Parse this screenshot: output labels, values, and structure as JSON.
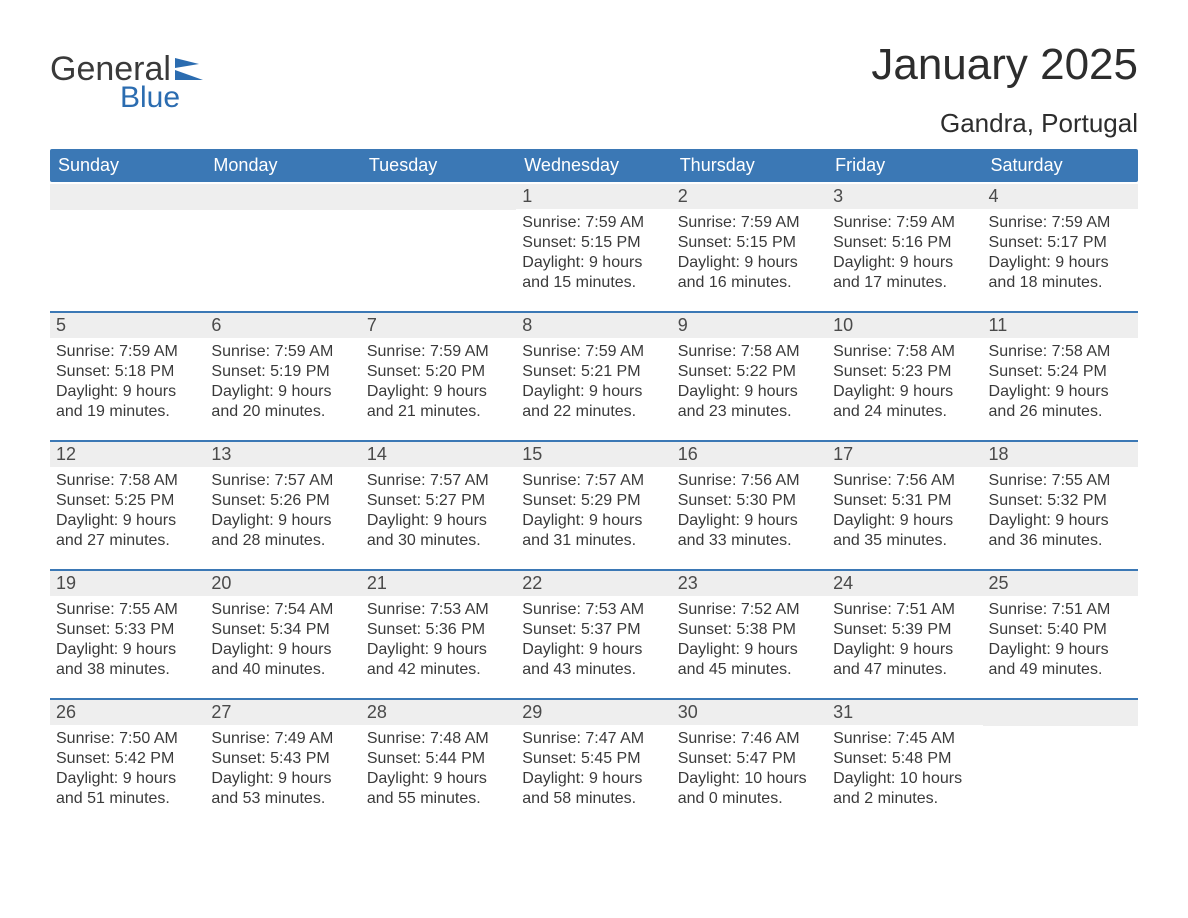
{
  "logo": {
    "word1": "General",
    "word2": "Blue",
    "word1_color": "#3a3a3a",
    "word2_color": "#2b6cb0",
    "flag_color": "#2b6cb0"
  },
  "title": {
    "month_year": "January 2025",
    "location": "Gandra, Portugal",
    "title_fontsize": 44,
    "location_fontsize": 26,
    "text_color": "#2d2d2d"
  },
  "style": {
    "header_bg": "#3b78b5",
    "header_text_color": "#ffffff",
    "week_border_color": "#3b78b5",
    "daynum_bg": "#eeeeee",
    "daynum_color": "#4a4a4a",
    "body_text_color": "#3a3a3a",
    "page_bg": "#ffffff",
    "weekday_fontsize": 18,
    "daynum_fontsize": 18,
    "content_fontsize": 16
  },
  "weekdays": [
    "Sunday",
    "Monday",
    "Tuesday",
    "Wednesday",
    "Thursday",
    "Friday",
    "Saturday"
  ],
  "weeks": [
    [
      null,
      null,
      null,
      {
        "n": "1",
        "sunrise": "Sunrise: 7:59 AM",
        "sunset": "Sunset: 5:15 PM",
        "dl1": "Daylight: 9 hours",
        "dl2": "and 15 minutes."
      },
      {
        "n": "2",
        "sunrise": "Sunrise: 7:59 AM",
        "sunset": "Sunset: 5:15 PM",
        "dl1": "Daylight: 9 hours",
        "dl2": "and 16 minutes."
      },
      {
        "n": "3",
        "sunrise": "Sunrise: 7:59 AM",
        "sunset": "Sunset: 5:16 PM",
        "dl1": "Daylight: 9 hours",
        "dl2": "and 17 minutes."
      },
      {
        "n": "4",
        "sunrise": "Sunrise: 7:59 AM",
        "sunset": "Sunset: 5:17 PM",
        "dl1": "Daylight: 9 hours",
        "dl2": "and 18 minutes."
      }
    ],
    [
      {
        "n": "5",
        "sunrise": "Sunrise: 7:59 AM",
        "sunset": "Sunset: 5:18 PM",
        "dl1": "Daylight: 9 hours",
        "dl2": "and 19 minutes."
      },
      {
        "n": "6",
        "sunrise": "Sunrise: 7:59 AM",
        "sunset": "Sunset: 5:19 PM",
        "dl1": "Daylight: 9 hours",
        "dl2": "and 20 minutes."
      },
      {
        "n": "7",
        "sunrise": "Sunrise: 7:59 AM",
        "sunset": "Sunset: 5:20 PM",
        "dl1": "Daylight: 9 hours",
        "dl2": "and 21 minutes."
      },
      {
        "n": "8",
        "sunrise": "Sunrise: 7:59 AM",
        "sunset": "Sunset: 5:21 PM",
        "dl1": "Daylight: 9 hours",
        "dl2": "and 22 minutes."
      },
      {
        "n": "9",
        "sunrise": "Sunrise: 7:58 AM",
        "sunset": "Sunset: 5:22 PM",
        "dl1": "Daylight: 9 hours",
        "dl2": "and 23 minutes."
      },
      {
        "n": "10",
        "sunrise": "Sunrise: 7:58 AM",
        "sunset": "Sunset: 5:23 PM",
        "dl1": "Daylight: 9 hours",
        "dl2": "and 24 minutes."
      },
      {
        "n": "11",
        "sunrise": "Sunrise: 7:58 AM",
        "sunset": "Sunset: 5:24 PM",
        "dl1": "Daylight: 9 hours",
        "dl2": "and 26 minutes."
      }
    ],
    [
      {
        "n": "12",
        "sunrise": "Sunrise: 7:58 AM",
        "sunset": "Sunset: 5:25 PM",
        "dl1": "Daylight: 9 hours",
        "dl2": "and 27 minutes."
      },
      {
        "n": "13",
        "sunrise": "Sunrise: 7:57 AM",
        "sunset": "Sunset: 5:26 PM",
        "dl1": "Daylight: 9 hours",
        "dl2": "and 28 minutes."
      },
      {
        "n": "14",
        "sunrise": "Sunrise: 7:57 AM",
        "sunset": "Sunset: 5:27 PM",
        "dl1": "Daylight: 9 hours",
        "dl2": "and 30 minutes."
      },
      {
        "n": "15",
        "sunrise": "Sunrise: 7:57 AM",
        "sunset": "Sunset: 5:29 PM",
        "dl1": "Daylight: 9 hours",
        "dl2": "and 31 minutes."
      },
      {
        "n": "16",
        "sunrise": "Sunrise: 7:56 AM",
        "sunset": "Sunset: 5:30 PM",
        "dl1": "Daylight: 9 hours",
        "dl2": "and 33 minutes."
      },
      {
        "n": "17",
        "sunrise": "Sunrise: 7:56 AM",
        "sunset": "Sunset: 5:31 PM",
        "dl1": "Daylight: 9 hours",
        "dl2": "and 35 minutes."
      },
      {
        "n": "18",
        "sunrise": "Sunrise: 7:55 AM",
        "sunset": "Sunset: 5:32 PM",
        "dl1": "Daylight: 9 hours",
        "dl2": "and 36 minutes."
      }
    ],
    [
      {
        "n": "19",
        "sunrise": "Sunrise: 7:55 AM",
        "sunset": "Sunset: 5:33 PM",
        "dl1": "Daylight: 9 hours",
        "dl2": "and 38 minutes."
      },
      {
        "n": "20",
        "sunrise": "Sunrise: 7:54 AM",
        "sunset": "Sunset: 5:34 PM",
        "dl1": "Daylight: 9 hours",
        "dl2": "and 40 minutes."
      },
      {
        "n": "21",
        "sunrise": "Sunrise: 7:53 AM",
        "sunset": "Sunset: 5:36 PM",
        "dl1": "Daylight: 9 hours",
        "dl2": "and 42 minutes."
      },
      {
        "n": "22",
        "sunrise": "Sunrise: 7:53 AM",
        "sunset": "Sunset: 5:37 PM",
        "dl1": "Daylight: 9 hours",
        "dl2": "and 43 minutes."
      },
      {
        "n": "23",
        "sunrise": "Sunrise: 7:52 AM",
        "sunset": "Sunset: 5:38 PM",
        "dl1": "Daylight: 9 hours",
        "dl2": "and 45 minutes."
      },
      {
        "n": "24",
        "sunrise": "Sunrise: 7:51 AM",
        "sunset": "Sunset: 5:39 PM",
        "dl1": "Daylight: 9 hours",
        "dl2": "and 47 minutes."
      },
      {
        "n": "25",
        "sunrise": "Sunrise: 7:51 AM",
        "sunset": "Sunset: 5:40 PM",
        "dl1": "Daylight: 9 hours",
        "dl2": "and 49 minutes."
      }
    ],
    [
      {
        "n": "26",
        "sunrise": "Sunrise: 7:50 AM",
        "sunset": "Sunset: 5:42 PM",
        "dl1": "Daylight: 9 hours",
        "dl2": "and 51 minutes."
      },
      {
        "n": "27",
        "sunrise": "Sunrise: 7:49 AM",
        "sunset": "Sunset: 5:43 PM",
        "dl1": "Daylight: 9 hours",
        "dl2": "and 53 minutes."
      },
      {
        "n": "28",
        "sunrise": "Sunrise: 7:48 AM",
        "sunset": "Sunset: 5:44 PM",
        "dl1": "Daylight: 9 hours",
        "dl2": "and 55 minutes."
      },
      {
        "n": "29",
        "sunrise": "Sunrise: 7:47 AM",
        "sunset": "Sunset: 5:45 PM",
        "dl1": "Daylight: 9 hours",
        "dl2": "and 58 minutes."
      },
      {
        "n": "30",
        "sunrise": "Sunrise: 7:46 AM",
        "sunset": "Sunset: 5:47 PM",
        "dl1": "Daylight: 10 hours",
        "dl2": "and 0 minutes."
      },
      {
        "n": "31",
        "sunrise": "Sunrise: 7:45 AM",
        "sunset": "Sunset: 5:48 PM",
        "dl1": "Daylight: 10 hours",
        "dl2": "and 2 minutes."
      },
      null
    ]
  ]
}
